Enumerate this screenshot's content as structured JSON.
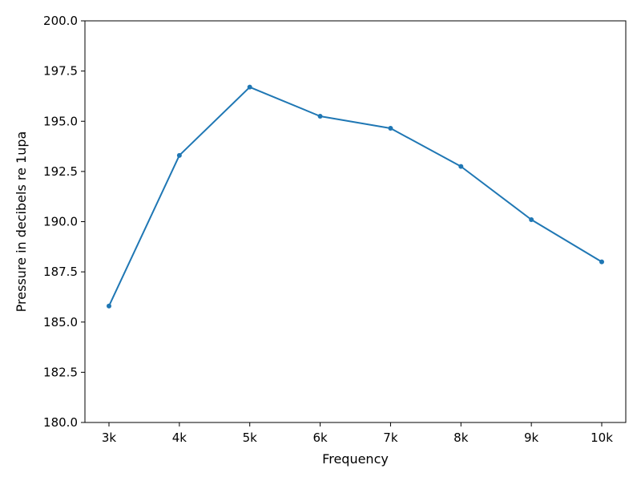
{
  "chart_data": {
    "type": "line",
    "title": "",
    "xlabel": "Frequency",
    "ylabel": "Pressure in decibels re 1upa",
    "categories": [
      "3k",
      "4k",
      "5k",
      "6k",
      "7k",
      "8k",
      "9k",
      "10k"
    ],
    "series": [
      {
        "values": [
          185.8,
          193.3,
          196.7,
          195.25,
          194.65,
          192.75,
          190.1,
          188.0
        ],
        "color": "#1f77b4",
        "marker": "circle"
      }
    ],
    "ylim": [
      180.0,
      200.0
    ],
    "yticks": [
      "180.0",
      "182.5",
      "185.0",
      "187.5",
      "190.0",
      "192.5",
      "195.0",
      "197.5",
      "200.0"
    ],
    "grid": false,
    "legend": "none"
  }
}
